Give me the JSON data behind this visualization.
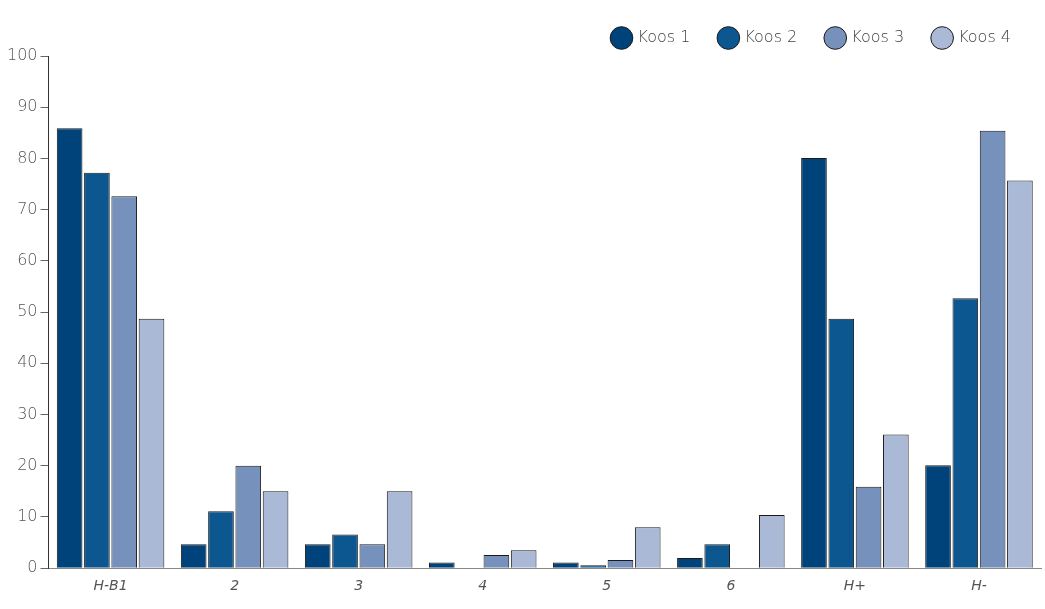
{
  "chart_data": {
    "type": "bar",
    "categories": [
      "H-B1",
      "2",
      "3",
      "4",
      "5",
      "6",
      "H+",
      "H-"
    ],
    "series": [
      {
        "name": "Koos 1",
        "color": "#00427a",
        "values": [
          85.9,
          4.7,
          4.7,
          1.1,
          1.1,
          2.0,
          80.1,
          20.1
        ]
      },
      {
        "name": "Koos 2",
        "color": "#0c578f",
        "values": [
          77.2,
          11.1,
          6.6,
          0,
          0.6,
          4.7,
          48.7,
          52.7
        ]
      },
      {
        "name": "Koos 3",
        "color": "#7691bb",
        "values": [
          72.6,
          20.0,
          4.7,
          2.6,
          1.6,
          0,
          15.9,
          85.4
        ]
      },
      {
        "name": "Koos 4",
        "color": "#a9b9d6",
        "values": [
          48.7,
          15.0,
          15.0,
          3.5,
          8.0,
          10.4,
          26.1,
          75.7
        ]
      }
    ],
    "ylim": [
      0,
      100
    ],
    "yticks": [
      0,
      10,
      20,
      30,
      40,
      50,
      60,
      70,
      80,
      90,
      100
    ],
    "grid": false,
    "legend": "top right"
  }
}
